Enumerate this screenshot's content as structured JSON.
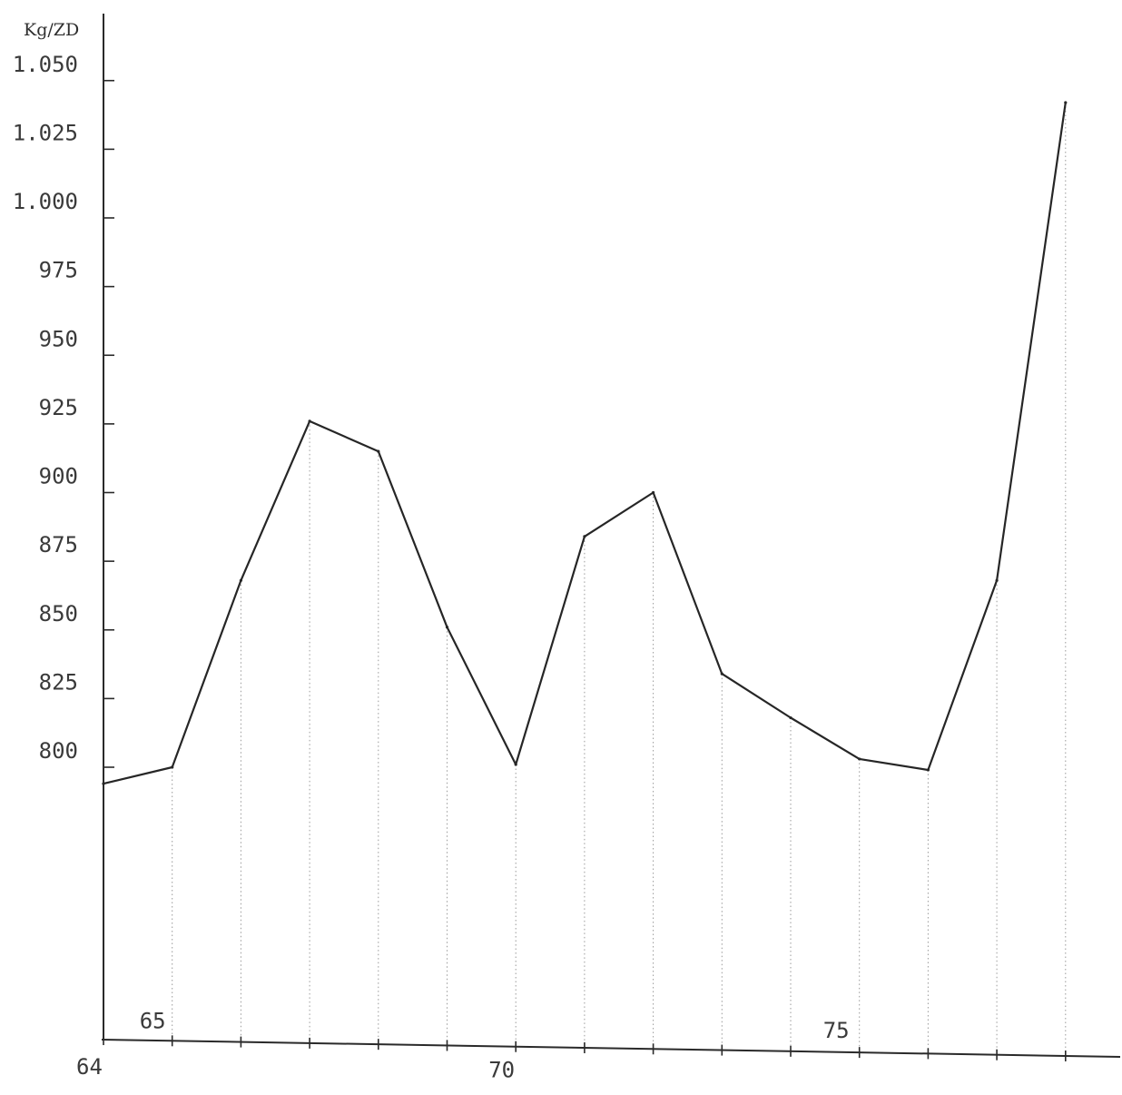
{
  "chart_data": {
    "type": "line",
    "ylabel": "Kg/ZD",
    "y_tick_labels": [
      "800",
      "825",
      "850",
      "875",
      "900",
      "925",
      "950",
      "975",
      "1.000",
      "1.025",
      "1.050"
    ],
    "y_tick_values": [
      800,
      825,
      850,
      875,
      900,
      925,
      950,
      975,
      1000,
      1025,
      1050
    ],
    "x_tick_labels": [
      {
        "label": "64",
        "x": 64
      },
      {
        "label": "65",
        "x": 65
      },
      {
        "label": "70",
        "x": 70
      },
      {
        "label": "75",
        "x": 75
      }
    ],
    "ylim": [
      800,
      1050
    ],
    "xlim": [
      64,
      78
    ],
    "grid": "vertical dotted drop lines at each point",
    "series": [
      {
        "x": [
          64,
          65,
          66,
          67,
          68,
          69,
          70,
          71,
          72,
          73,
          74,
          75,
          76,
          77,
          78
        ],
        "values": [
          794,
          800,
          868,
          926,
          915,
          851,
          801,
          884,
          900,
          834,
          818,
          803,
          799,
          868,
          1042
        ]
      }
    ]
  }
}
